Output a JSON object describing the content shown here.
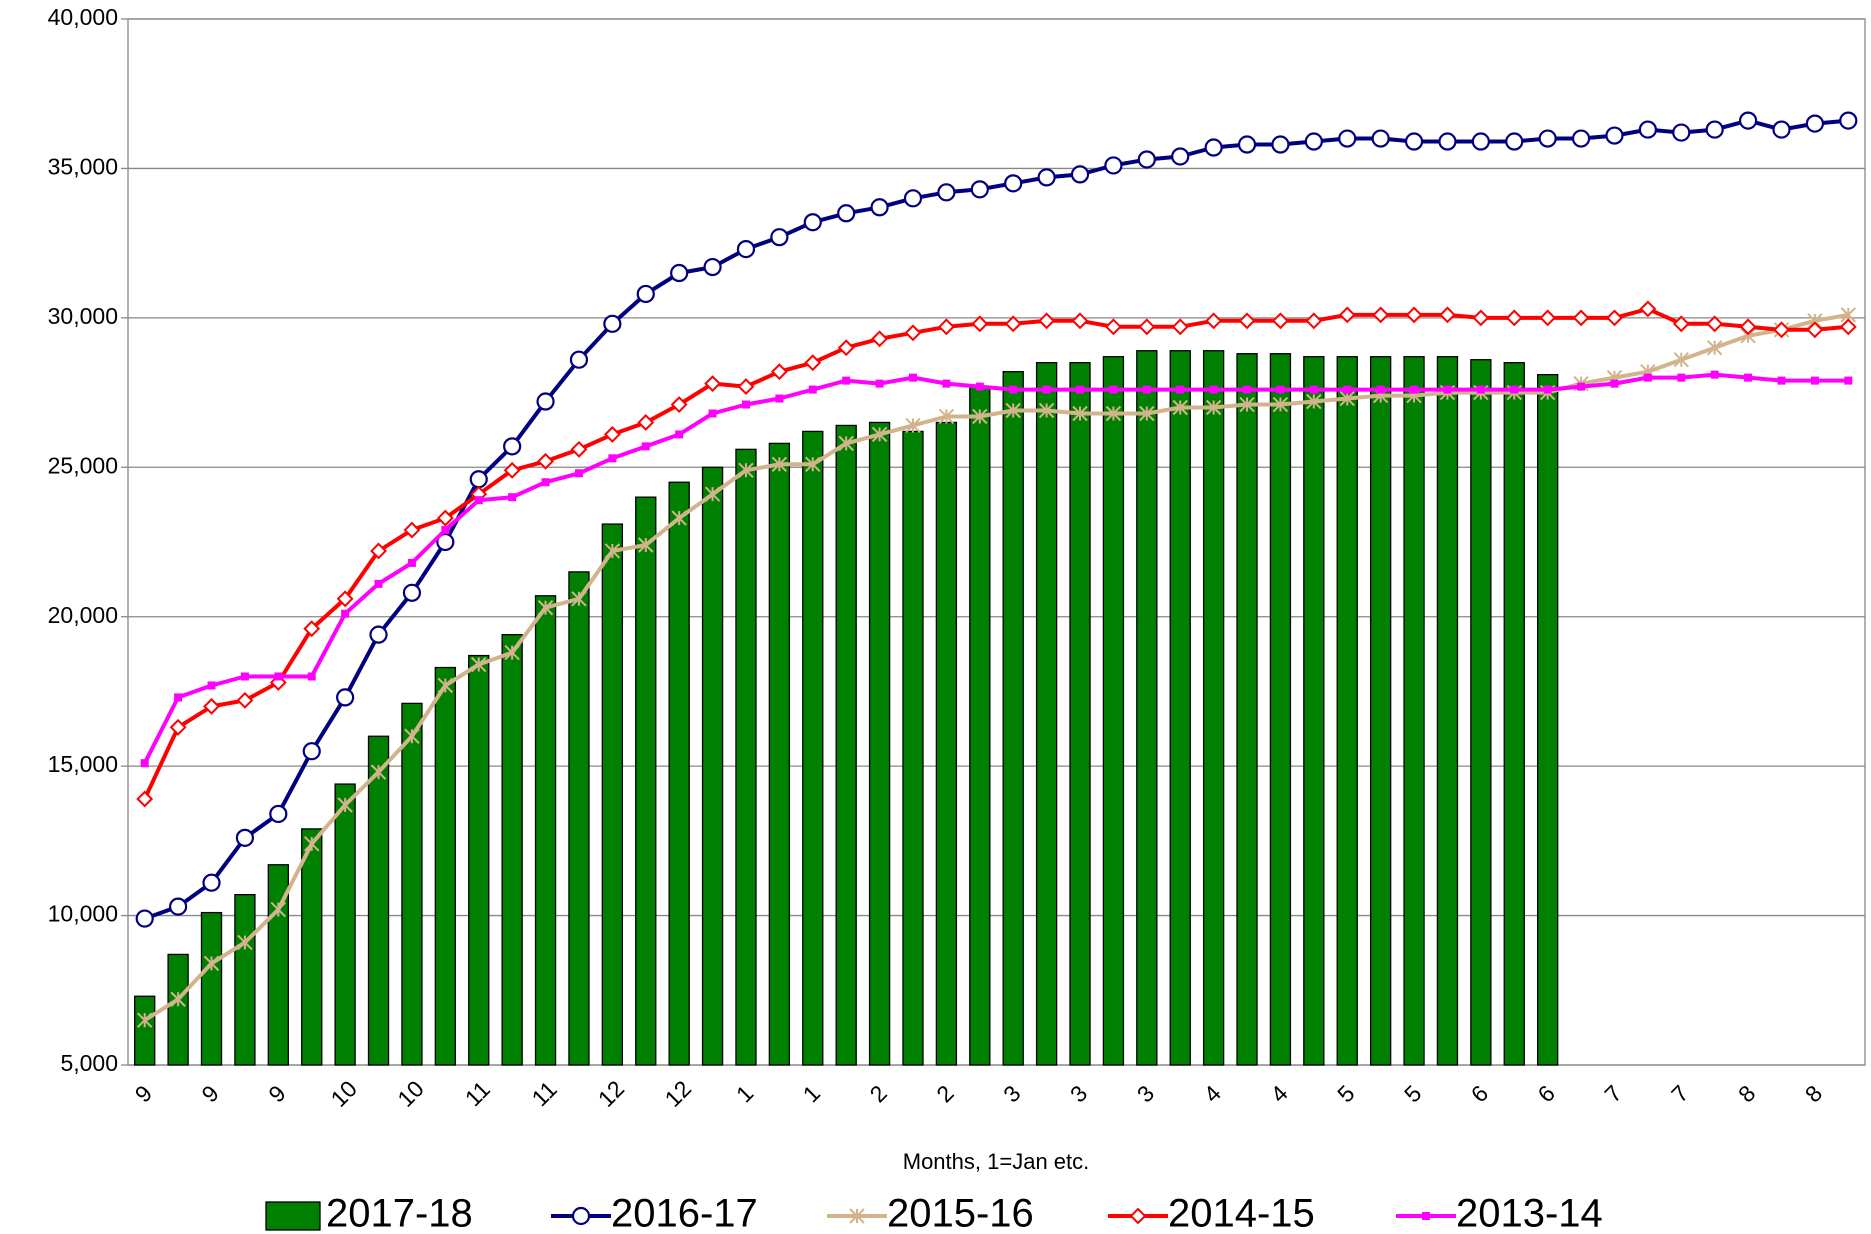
{
  "chart_data": {
    "type": "bar",
    "x_label": "Months, 1=Jan etc.",
    "categories": [
      "9",
      null,
      "9",
      null,
      "9",
      null,
      "10",
      null,
      "10",
      null,
      "11",
      null,
      "11",
      null,
      "12",
      null,
      "12",
      null,
      "1",
      null,
      "1",
      null,
      "2",
      null,
      "2",
      null,
      "3",
      null,
      "3",
      null,
      "3",
      null,
      "4",
      null,
      "4",
      null,
      "5",
      null,
      "5",
      null,
      "6",
      null,
      "6",
      null,
      "7",
      null,
      "7",
      null,
      "8",
      null,
      "8",
      null
    ],
    "ylim": [
      5000,
      40000
    ],
    "yticks": [
      {
        "value": 5000,
        "label": "5,000"
      },
      {
        "value": 10000,
        "label": "10,000"
      },
      {
        "value": 15000,
        "label": "15,000"
      },
      {
        "value": 20000,
        "label": "20,000"
      },
      {
        "value": 25000,
        "label": "25,000"
      },
      {
        "value": 30000,
        "label": "30,000"
      },
      {
        "value": 35000,
        "label": "35,000"
      },
      {
        "value": 40000,
        "label": "40,000"
      }
    ],
    "grid": true,
    "series": [
      {
        "name": "2017-18",
        "type": "bar",
        "color": "#008000",
        "values": [
          7300,
          8700,
          10100,
          10700,
          11700,
          12900,
          14400,
          16000,
          17100,
          18300,
          18700,
          19400,
          20700,
          21500,
          23100,
          24000,
          24500,
          25000,
          25600,
          25800,
          26200,
          26400,
          26500,
          26200,
          26500,
          27700,
          28200,
          28500,
          28500,
          28700,
          28900,
          28900,
          28900,
          28800,
          28800,
          28700,
          28700,
          28700,
          28700,
          28700,
          28600,
          28500,
          28100,
          null,
          null,
          null,
          null,
          null,
          null,
          null,
          null,
          null
        ]
      },
      {
        "name": "2016-17",
        "type": "line",
        "marker": "circle",
        "color": "#000080",
        "values": [
          9900,
          10300,
          11100,
          12600,
          13400,
          15500,
          17300,
          19400,
          20800,
          22500,
          24600,
          25700,
          27200,
          28600,
          29800,
          30800,
          31500,
          31700,
          32300,
          32700,
          33200,
          33500,
          33700,
          34000,
          34200,
          34300,
          34500,
          34700,
          34800,
          35100,
          35300,
          35400,
          35700,
          35800,
          35800,
          35900,
          36000,
          36000,
          35900,
          35900,
          35900,
          35900,
          36000,
          36000,
          36100,
          36300,
          36200,
          36300,
          36600,
          36300,
          36500,
          36600
        ]
      },
      {
        "name": "2015-16",
        "type": "line",
        "marker": "star",
        "color": "#d2b48c",
        "values": [
          6500,
          7200,
          8400,
          9100,
          10200,
          12400,
          13700,
          14800,
          16000,
          17700,
          18400,
          18800,
          20300,
          20600,
          22200,
          22400,
          23300,
          24100,
          24900,
          25100,
          25100,
          25800,
          26100,
          26400,
          26700,
          26700,
          26900,
          26900,
          26800,
          26800,
          26800,
          27000,
          27000,
          27100,
          27100,
          27200,
          27300,
          27400,
          27400,
          27500,
          27500,
          27500,
          27500,
          27800,
          28000,
          28200,
          28600,
          29000,
          29400,
          29600,
          29900,
          30100
        ]
      },
      {
        "name": "2014-15",
        "type": "line",
        "marker": "diamond",
        "color": "#ff0000",
        "values": [
          13900,
          16300,
          17000,
          17200,
          17800,
          19600,
          20600,
          22200,
          22900,
          23300,
          24100,
          24900,
          25200,
          25600,
          26100,
          26500,
          27100,
          27800,
          27700,
          28200,
          28500,
          29000,
          29300,
          29500,
          29700,
          29800,
          29800,
          29900,
          29900,
          29700,
          29700,
          29700,
          29900,
          29900,
          29900,
          29900,
          30100,
          30100,
          30100,
          30100,
          30000,
          30000,
          30000,
          30000,
          30000,
          30300,
          29800,
          29800,
          29700,
          29600,
          29600,
          29700
        ]
      },
      {
        "name": "2013-14",
        "type": "line",
        "marker": "square",
        "color": "#ff00ff",
        "values": [
          15100,
          17300,
          17700,
          18000,
          18000,
          18000,
          20100,
          21100,
          21800,
          22900,
          23900,
          24000,
          24500,
          24800,
          25300,
          25700,
          26100,
          26800,
          27100,
          27300,
          27600,
          27900,
          27800,
          28000,
          27800,
          27700,
          27600,
          27600,
          27600,
          27600,
          27600,
          27600,
          27600,
          27600,
          27600,
          27600,
          27600,
          27600,
          27600,
          27600,
          27600,
          27600,
          27600,
          27700,
          27800,
          28000,
          28000,
          28100,
          28000,
          27900,
          27900,
          27900
        ]
      }
    ]
  }
}
